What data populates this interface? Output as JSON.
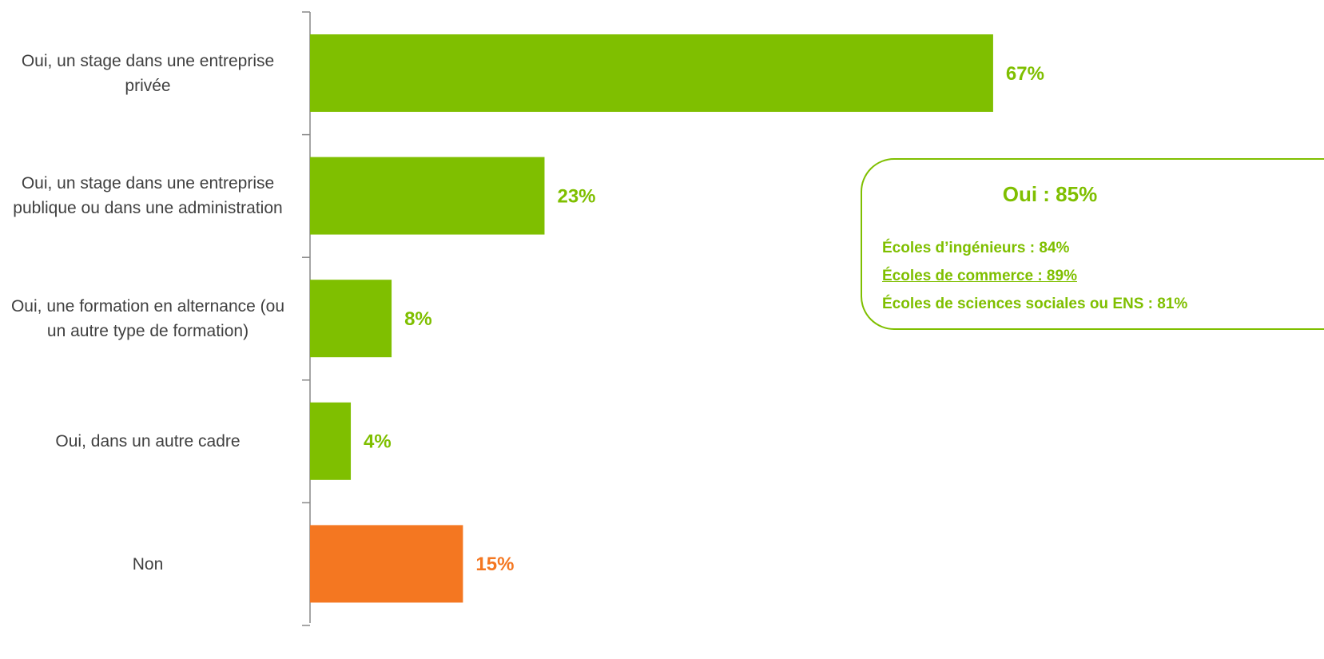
{
  "chart_data": {
    "type": "hbar",
    "categories": [
      "Oui, un stage dans une entreprise privée",
      "Oui, un stage dans une entreprise publique ou dans une administration",
      "Oui, une formation en alternance (ou un autre type de formation)",
      "Oui, dans un autre cadre",
      "Non"
    ],
    "values": [
      67,
      23,
      8,
      4,
      15
    ],
    "value_labels": [
      "67%",
      "23%",
      "8%",
      "4%",
      "15%"
    ],
    "colors": [
      "#7fbf00",
      "#7fbf00",
      "#7fbf00",
      "#7fbf00",
      "#f47721"
    ],
    "annotation": {
      "title": "Oui : 85%",
      "lines": [
        "Écoles d’ingénieurs : 84%",
        "Écoles de commerce : 89%",
        "Écoles de sciences sociales ou ENS : 81%"
      ]
    }
  }
}
